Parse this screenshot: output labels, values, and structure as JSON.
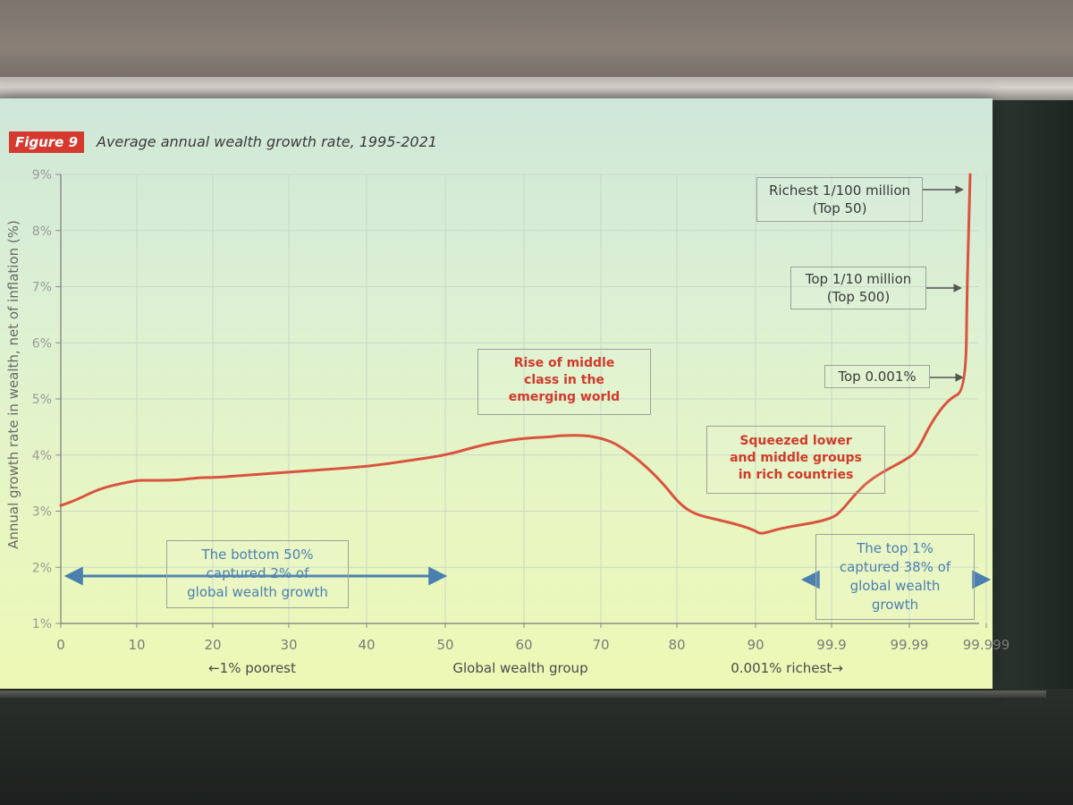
{
  "figure": {
    "badge": "Figure 9",
    "title": "Average annual wealth growth rate, 1995-2021"
  },
  "colors": {
    "accent": "#d63a2f",
    "line": "#d9533f",
    "arrow_blue": "#4a7fb0",
    "grid": "#c9d8c8"
  },
  "chart_data": {
    "type": "line",
    "title": "Average annual wealth growth rate, 1995-2021",
    "xlabel": "Global wealth group",
    "ylabel": "Annual growth rate in wealth, net of inflation (%)",
    "x_ticks": [
      "0",
      "10",
      "20",
      "30",
      "40",
      "50",
      "60",
      "70",
      "80",
      "90",
      "99.9",
      "99.99",
      "99.999"
    ],
    "x_sublabels": {
      "left": "←1% poorest",
      "center": "Global wealth group",
      "right": "0.001% richest→"
    },
    "y_ticks": [
      "1%",
      "2%",
      "3%",
      "4%",
      "5%",
      "6%",
      "7%",
      "8%",
      "9%"
    ],
    "ylim": [
      1,
      9
    ],
    "grid": true,
    "series": [
      {
        "x": [
          "0",
          "2",
          "5",
          "8",
          "10",
          "11",
          "15",
          "18",
          "20",
          "25",
          "30",
          "35",
          "40",
          "45",
          "50",
          "55",
          "60",
          "63",
          "65",
          "68",
          "70",
          "72",
          "75",
          "78",
          "80",
          "82",
          "85",
          "88",
          "90",
          "92",
          "95",
          "98",
          "99.9",
          "99.93",
          "99.95",
          "99.97",
          "99.99",
          "99.993",
          "99.996",
          "99.998",
          "99.999",
          "99.9995",
          "99.9999"
        ],
        "values": [
          3.1,
          3.2,
          3.4,
          3.5,
          3.55,
          3.55,
          3.55,
          3.6,
          3.6,
          3.65,
          3.7,
          3.75,
          3.8,
          3.9,
          4.0,
          4.2,
          4.3,
          4.32,
          4.35,
          4.35,
          4.3,
          4.2,
          3.9,
          3.5,
          3.15,
          2.95,
          2.85,
          2.75,
          2.65,
          2.6,
          2.62,
          2.7,
          2.85,
          3.05,
          3.3,
          3.6,
          3.95,
          4.1,
          4.6,
          5.0,
          5.15,
          7.0,
          9.0
        ]
      }
    ],
    "annotations": [
      {
        "lines": [
          "The bottom 50%",
          "captured 2% of",
          "global wealth growth"
        ]
      },
      {
        "lines": [
          "Rise of middle",
          "class in the",
          "emerging world"
        ]
      },
      {
        "lines": [
          "Squeezed lower",
          "and middle groups",
          "in rich countries"
        ]
      },
      {
        "lines": [
          "The top 1%",
          "captured 38% of",
          "global wealth",
          "growth"
        ]
      },
      {
        "lines": [
          "Richest 1/100 million",
          "(Top 50)"
        ]
      },
      {
        "lines": [
          "Top 1/10 million",
          "(Top 500)"
        ]
      },
      {
        "lines": [
          "Top 0.001%"
        ]
      }
    ]
  }
}
